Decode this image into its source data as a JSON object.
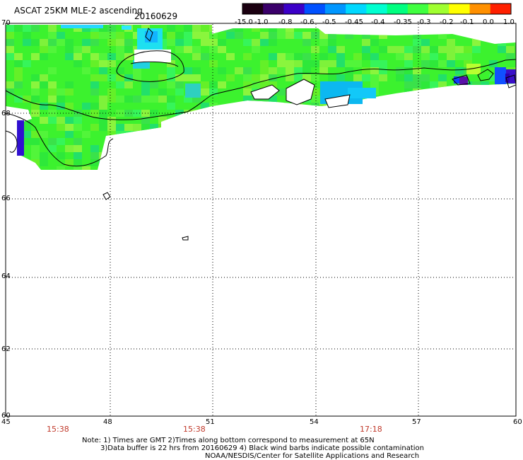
{
  "header": {
    "title": "ASCAT 25KM MLE-2 ascending",
    "date": "20160629"
  },
  "colorbar": {
    "labels": [
      "-15.0",
      "-1.0",
      "-0.8",
      "-0.6",
      "-0.5",
      "-0.45",
      "-0.4",
      "-0.35",
      "-0.3",
      "-0.2",
      "-0.1",
      "0.0",
      "1.0"
    ],
    "colors": [
      "#1a0010",
      "#3a006a",
      "#3b00c8",
      "#0050ff",
      "#0096ff",
      "#00d8ff",
      "#00ffd0",
      "#00ff80",
      "#40ff40",
      "#a0ff30",
      "#ffff00",
      "#ff9000",
      "#ff2000"
    ]
  },
  "axes": {
    "x_ticks": [
      "45",
      "48",
      "51",
      "54",
      "57",
      "60"
    ],
    "y_ticks": [
      "70",
      "68",
      "66",
      "64",
      "62",
      "60"
    ]
  },
  "times": [
    "15:38",
    "15:38",
    "17:18"
  ],
  "notes": {
    "line1": "Note: 1) Times are GMT 2)Times along bottom correspond to measurement at 65N",
    "line2": "3)Data buffer is 22 hrs from 20160629 4) Black wind barbs indicate possible contamination",
    "line3": "NOAA/NESDIS/Center for Satellite Applications and Research"
  }
}
